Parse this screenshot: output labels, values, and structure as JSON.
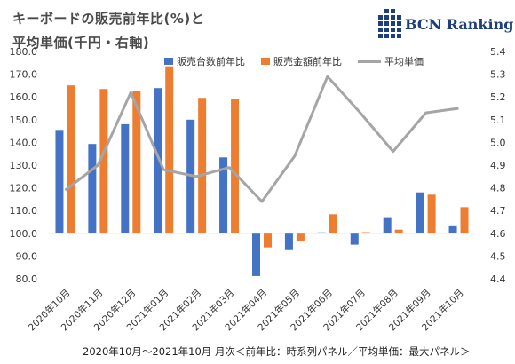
{
  "title_line1": "キーボードの販売前年比(%)と",
  "title_line2": "平均単価(千円・右軸)",
  "logo_text": "BCN Ranking",
  "footnote": "2020年10月～2021年10月 月次＜前年比：時系列パネル／平均単価：最大パネル＞",
  "colors": {
    "bar_units": "#4472C4",
    "bar_amount": "#ED7D31",
    "line_price": "#A5A5A5",
    "logo": "#1d3f7a"
  },
  "chart_data": {
    "type": "bar",
    "categories": [
      "2020年10月",
      "2020年11月",
      "2020年12月",
      "2021年01月",
      "2021年02月",
      "2021年03月",
      "2021年04月",
      "2021年05月",
      "2021年06月",
      "2021年07月",
      "2021年08月",
      "2021年09月",
      "2021年10月"
    ],
    "series": [
      {
        "name": "販売台数前年比",
        "type": "bar",
        "axis": "left",
        "values": [
          145.5,
          139.3,
          148.0,
          163.9,
          150.0,
          133.4,
          81.2,
          92.6,
          100.4,
          95.0,
          107.1,
          118.0,
          103.5
        ]
      },
      {
        "name": "販売金額前年比",
        "type": "bar",
        "axis": "left",
        "values": [
          165.1,
          163.5,
          162.8,
          173.5,
          159.6,
          159.1,
          93.8,
          96.4,
          108.4,
          100.5,
          101.6,
          117.0,
          111.5
        ]
      },
      {
        "name": "平均単価",
        "type": "line",
        "axis": "right",
        "values": [
          4.79,
          4.9,
          5.22,
          4.88,
          4.85,
          4.89,
          4.74,
          4.94,
          5.29,
          5.13,
          4.96,
          5.13,
          5.15
        ]
      }
    ],
    "y_left": {
      "min": 80,
      "max": 180,
      "step": 10,
      "baseline": 100,
      "tick_labels": [
        "80.0",
        "90.0",
        "100.0",
        "110.0",
        "120.0",
        "130.0",
        "140.0",
        "150.0",
        "160.0",
        "170.0",
        "180.0"
      ]
    },
    "y_right": {
      "min": 4.4,
      "max": 5.4,
      "step": 0.1,
      "tick_labels": [
        "4.4",
        "4.5",
        "4.6",
        "4.7",
        "4.8",
        "4.9",
        "5.0",
        "5.1",
        "5.2",
        "5.3",
        "5.4"
      ]
    },
    "grid": false,
    "legend_position": "top"
  }
}
